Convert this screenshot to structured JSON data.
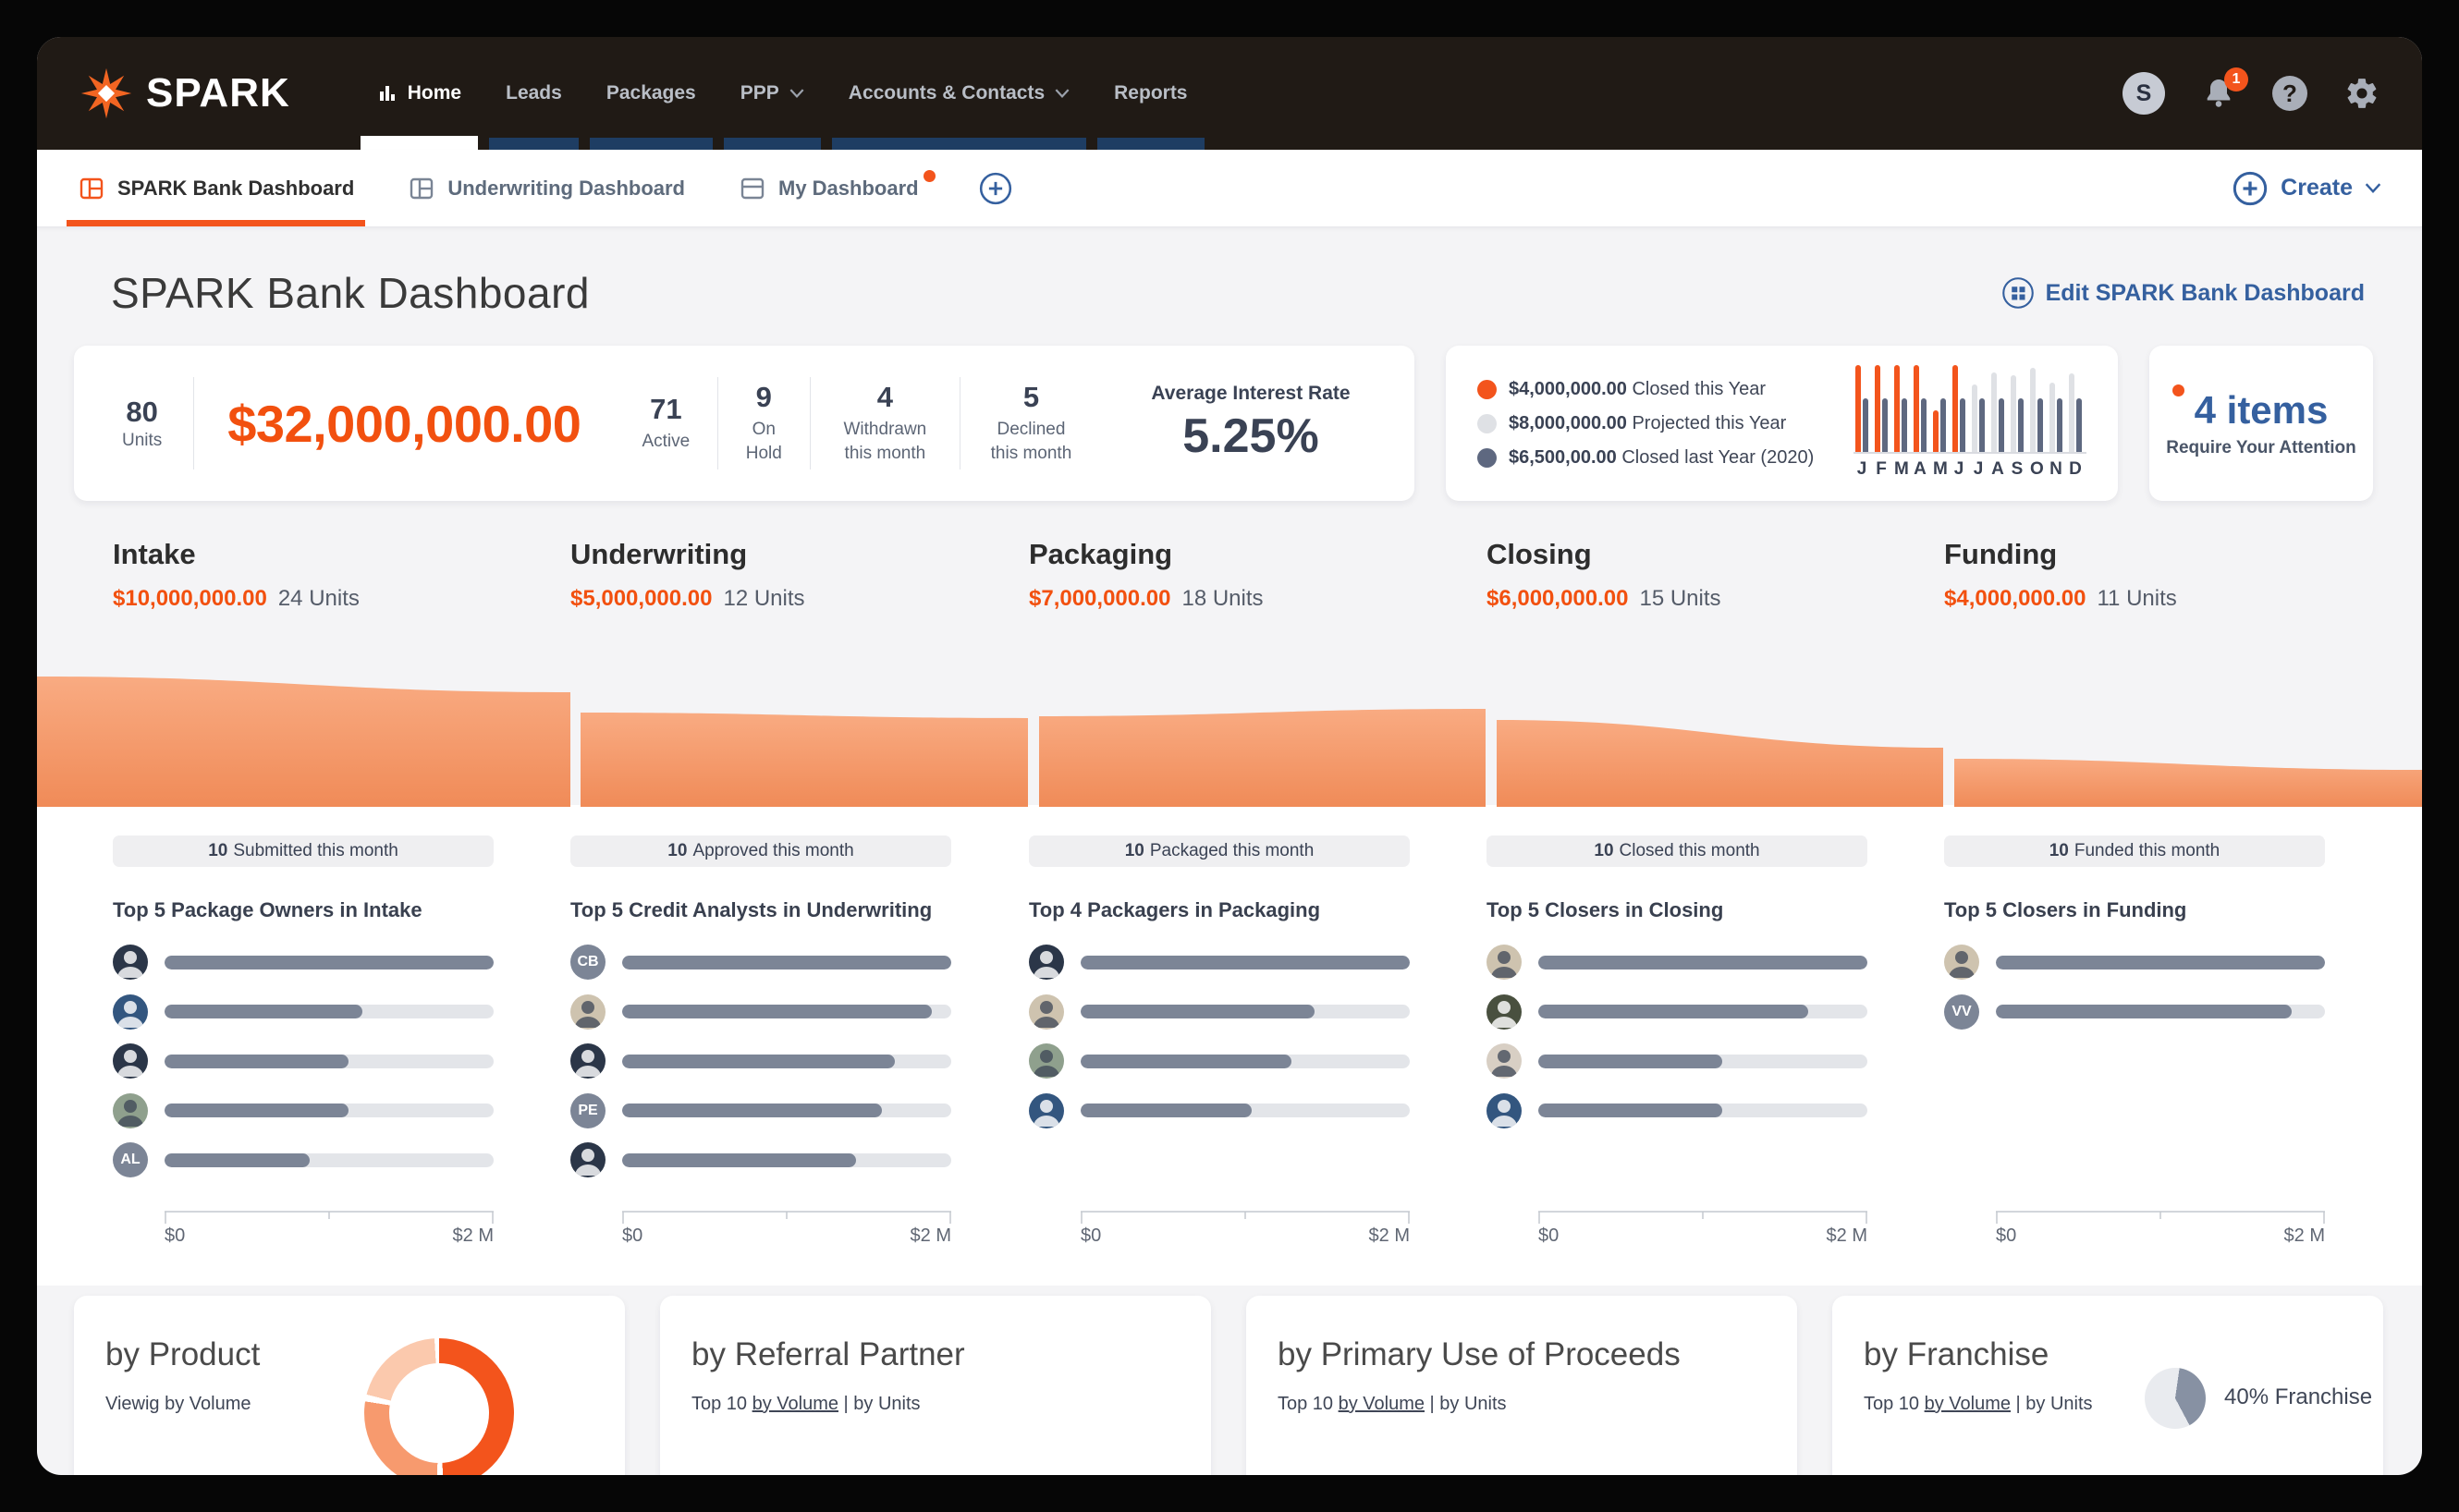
{
  "theme": {
    "orange": "#F3541C",
    "orange_text": "#F2500F",
    "funnel_top": "#F9AB82",
    "funnel_bottom": "#F08B58",
    "navy": "#3A4254",
    "bar_fill": "#7C8596",
    "bar_track": "#E3E5E9",
    "blue": "#35609F",
    "nav_bg": "#201A15",
    "page_bg": "#F4F4F6",
    "badge_bg": "#EFEFF1",
    "strip_blue": "#1E3D63",
    "projected_gray": "#DFE1E5",
    "last_year_slate": "#5E6880"
  },
  "nav": {
    "logo_text": "SPARK",
    "items": [
      {
        "label": "Home",
        "active": true,
        "icon": "bar-chart",
        "caret": false
      },
      {
        "label": "Leads",
        "active": false,
        "caret": false
      },
      {
        "label": "Packages",
        "active": false,
        "caret": false
      },
      {
        "label": "PPP",
        "active": false,
        "caret": true
      },
      {
        "label": "Accounts & Contacts",
        "active": false,
        "caret": true
      },
      {
        "label": "Reports",
        "active": false,
        "caret": false
      }
    ],
    "right": {
      "avatar_initial": "S",
      "notification_count": "1"
    }
  },
  "tabs": {
    "items": [
      {
        "label": "SPARK Bank Dashboard",
        "active": true,
        "dot": false
      },
      {
        "label": "Underwriting Dashboard",
        "active": false,
        "dot": false
      },
      {
        "label": "My Dashboard",
        "active": false,
        "dot": true
      }
    ],
    "create_label": "Create"
  },
  "page": {
    "title": "SPARK Bank Dashboard",
    "edit_label": "Edit SPARK Bank Dashboard"
  },
  "summary": {
    "units_value": "80",
    "units_label": "Units",
    "total_amount": "$32,000,000.00",
    "substats": [
      {
        "value": "71",
        "label": "Active"
      },
      {
        "value": "9",
        "label": "On Hold"
      },
      {
        "value": "4",
        "label": "Withdrawn this month"
      },
      {
        "value": "5",
        "label": "Declined this month"
      }
    ],
    "interest_label": "Average Interest Rate",
    "interest_value": "5.25%"
  },
  "overview": {
    "legend": [
      {
        "amount": "$4,000,000.00",
        "label": "Closed this Year",
        "color": "#F3541C"
      },
      {
        "amount": "$8,000,000.00",
        "label": "Projected this Year",
        "color": "#DFE1E5"
      },
      {
        "amount": "$6,500,00.00",
        "label": "Closed last Year (2020)",
        "color": "#5E6880"
      }
    ],
    "months": [
      "J",
      "F",
      "M",
      "A",
      "M",
      "J",
      "J",
      "A",
      "S",
      "O",
      "N",
      "D"
    ]
  },
  "attention": {
    "count_label": "4 items",
    "sub_label": "Require Your Attention"
  },
  "pipeline": {
    "stages": [
      {
        "name": "Intake",
        "amount": "$10,000,000.00",
        "units": "24 Units",
        "badge_count": "10",
        "badge_label": "Submitted this month",
        "list_title": "Top 5 Package Owners in Intake",
        "rows": [
          {
            "avatar": {
              "kind": "photo",
              "bg": "#2B3648"
            },
            "fill": 1.0
          },
          {
            "avatar": {
              "kind": "photo",
              "bg": "#33567F"
            },
            "fill": 0.6
          },
          {
            "avatar": {
              "kind": "photo",
              "bg": "#2B3648"
            },
            "fill": 0.56
          },
          {
            "avatar": {
              "kind": "photo",
              "bg": "#8FA08D"
            },
            "fill": 0.56
          },
          {
            "avatar": {
              "kind": "initials",
              "initials": "AL",
              "bg": "#7C8596"
            },
            "fill": 0.44
          }
        ],
        "axis_min": "$0",
        "axis_max": "$2 M"
      },
      {
        "name": "Underwriting",
        "amount": "$5,000,000.00",
        "units": "12 Units",
        "badge_count": "10",
        "badge_label": "Approved this month",
        "list_title": "Top 5 Credit Analysts in Underwriting",
        "rows": [
          {
            "avatar": {
              "kind": "initials",
              "initials": "CB",
              "bg": "#7C8596"
            },
            "fill": 1.0
          },
          {
            "avatar": {
              "kind": "photo",
              "bg": "#CEC3AF"
            },
            "fill": 0.94
          },
          {
            "avatar": {
              "kind": "photo",
              "bg": "#2B3648"
            },
            "fill": 0.83
          },
          {
            "avatar": {
              "kind": "initials",
              "initials": "PE",
              "bg": "#7C8596"
            },
            "fill": 0.79
          },
          {
            "avatar": {
              "kind": "photo",
              "bg": "#2B3648"
            },
            "fill": 0.71
          }
        ],
        "axis_min": "$0",
        "axis_max": "$2 M"
      },
      {
        "name": "Packaging",
        "amount": "$7,000,000.00",
        "units": "18 Units",
        "badge_count": "10",
        "badge_label": "Packaged this month",
        "list_title": "Top 4 Packagers in Packaging",
        "rows": [
          {
            "avatar": {
              "kind": "photo",
              "bg": "#2B3648"
            },
            "fill": 1.0
          },
          {
            "avatar": {
              "kind": "photo",
              "bg": "#CEC3AF"
            },
            "fill": 0.71
          },
          {
            "avatar": {
              "kind": "photo",
              "bg": "#8FA08D"
            },
            "fill": 0.64
          },
          {
            "avatar": {
              "kind": "photo",
              "bg": "#33567F"
            },
            "fill": 0.52
          }
        ],
        "axis_min": "$0",
        "axis_max": "$2 M"
      },
      {
        "name": "Closing",
        "amount": "$6,000,000.00",
        "units": "15 Units",
        "badge_count": "10",
        "badge_label": "Closed this month",
        "list_title": "Top 5 Closers in Closing",
        "rows": [
          {
            "avatar": {
              "kind": "photo",
              "bg": "#CEC3AF"
            },
            "fill": 1.0
          },
          {
            "avatar": {
              "kind": "photo",
              "bg": "#49503F"
            },
            "fill": 0.82
          },
          {
            "avatar": {
              "kind": "photo",
              "bg": "#D8CFC4"
            },
            "fill": 0.56
          },
          {
            "avatar": {
              "kind": "photo",
              "bg": "#33567F"
            },
            "fill": 0.56
          }
        ],
        "axis_min": "$0",
        "axis_max": "$2 M"
      },
      {
        "name": "Funding",
        "amount": "$4,000,000.00",
        "units": "11 Units",
        "badge_count": "10",
        "badge_label": "Funded this month",
        "list_title": "Top 5 Closers in Funding",
        "rows": [
          {
            "avatar": {
              "kind": "photo",
              "bg": "#CEC3AF"
            },
            "fill": 1.0
          },
          {
            "avatar": {
              "kind": "initials",
              "initials": "VV",
              "bg": "#7C8596"
            },
            "fill": 0.9
          }
        ],
        "axis_min": "$0",
        "axis_max": "$2 M"
      }
    ]
  },
  "bottom_cards": [
    {
      "title": "by Product",
      "sub_plain": "Viewig by Volume",
      "chart": "donut"
    },
    {
      "title": "by Referral Partner",
      "sub_prefix": "Top 10 ",
      "sub_link": "by Volume",
      "sub_rest": " | by Units"
    },
    {
      "title": "by Primary Use of Proceeds",
      "sub_prefix": "Top 10 ",
      "sub_link": "by Volume",
      "sub_rest": " | by Units"
    },
    {
      "title": "by Franchise",
      "sub_prefix": "Top 10 ",
      "sub_link": "by Volume",
      "sub_rest": " | by Units",
      "chart": "pie",
      "pie_label": "40% Franchise"
    }
  ],
  "chart_data": [
    {
      "type": "bar",
      "title": "Closed / Projected / Last Year by month",
      "categories": [
        "J",
        "F",
        "M",
        "A",
        "M",
        "J",
        "J",
        "A",
        "S",
        "O",
        "N",
        "D"
      ],
      "series": [
        {
          "name": "Closed this Year",
          "color": "#F3541C",
          "values_pct": [
            100,
            100,
            100,
            100,
            48,
            100,
            null,
            null,
            null,
            null,
            null,
            null
          ]
        },
        {
          "name": "Projected this Year",
          "color": "#DFE1E5",
          "values_pct": [
            null,
            null,
            null,
            null,
            null,
            null,
            78,
            92,
            88,
            97,
            80,
            90
          ]
        },
        {
          "name": "Closed last Year (2020)",
          "color": "#5E6880",
          "values_pct": [
            62,
            62,
            62,
            62,
            62,
            62,
            62,
            62,
            62,
            62,
            62,
            62
          ]
        }
      ],
      "note": "heights normalized to tallest bar = 100; axis unlabeled",
      "legend_position": "left",
      "grid": false
    },
    {
      "type": "area",
      "title": "Pipeline funnel",
      "categories": [
        "Intake",
        "Underwriting",
        "Packaging",
        "Closing",
        "Funding"
      ],
      "amounts_usd": [
        10000000,
        5000000,
        7000000,
        6000000,
        4000000
      ],
      "units": [
        24,
        12,
        18,
        15,
        11
      ]
    },
    {
      "type": "bar",
      "title": "Top 5 Package Owners in Intake",
      "xlim": [
        "$0",
        "$2 M"
      ],
      "values_musd": [
        2.0,
        1.2,
        1.12,
        1.12,
        0.88
      ]
    },
    {
      "type": "bar",
      "title": "Top 5 Credit Analysts in Underwriting",
      "xlim": [
        "$0",
        "$2 M"
      ],
      "values_musd": [
        2.0,
        1.88,
        1.66,
        1.58,
        1.42
      ]
    },
    {
      "type": "bar",
      "title": "Top 4 Packagers in Packaging",
      "xlim": [
        "$0",
        "$2 M"
      ],
      "values_musd": [
        2.0,
        1.42,
        1.28,
        1.04
      ]
    },
    {
      "type": "bar",
      "title": "Top 5 Closers in Closing",
      "xlim": [
        "$0",
        "$2 M"
      ],
      "values_musd": [
        2.0,
        1.64,
        1.12,
        1.12
      ]
    },
    {
      "type": "bar",
      "title": "Top 5 Closers in Funding",
      "xlim": [
        "$0",
        "$2 M"
      ],
      "values_musd": [
        2.0,
        1.8
      ]
    },
    {
      "type": "pie",
      "title": "by Product (Volume)",
      "slices_pct": [
        50,
        28,
        22
      ],
      "colors": [
        "#F3541C",
        "#F79A6E",
        "#FBC9AD"
      ],
      "donut": true
    },
    {
      "type": "pie",
      "title": "by Franchise",
      "slices_pct": [
        40,
        60
      ],
      "colors": [
        "#8791A3",
        "#E9EBEF"
      ],
      "label": "40% Franchise"
    }
  ]
}
